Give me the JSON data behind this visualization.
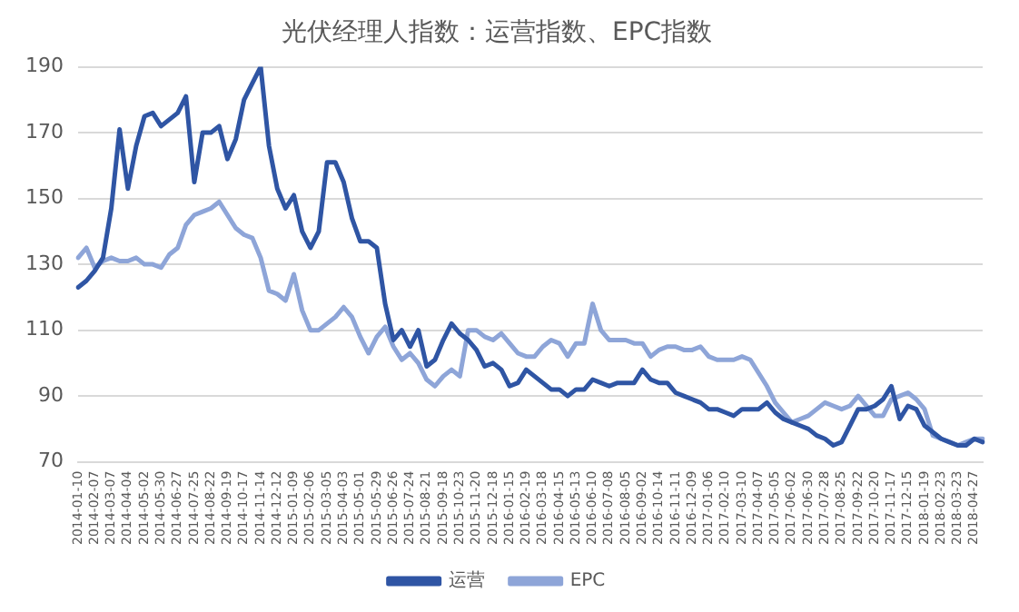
{
  "chart_data": {
    "type": "line",
    "title": "光伏经理人指数：运营指数、EPC指数",
    "categories": [
      "2014-01-10",
      null,
      "2014-02-07",
      null,
      "2014-03-07",
      null,
      "2014-04-04",
      null,
      "2014-05-02",
      null,
      "2014-05-30",
      null,
      "2014-06-27",
      null,
      "2014-07-25",
      null,
      "2014-08-22",
      null,
      "2014-09-19",
      null,
      "2014-10-17",
      null,
      "2014-11-14",
      null,
      "2014-12-12",
      null,
      "2015-01-09",
      null,
      "2015-02-06",
      null,
      "2015-03-05",
      null,
      "2015-04-03",
      null,
      "2015-05-01",
      null,
      "2015-05-29",
      null,
      "2015-06-26",
      null,
      "2015-07-24",
      null,
      "2015-08-21",
      null,
      "2015-09-18",
      null,
      "2015-10-23",
      null,
      "2015-11-20",
      null,
      "2015-12-18",
      null,
      "2016-01-15",
      null,
      "2016-02-19",
      null,
      "2016-03-18",
      null,
      "2016-04-15",
      null,
      "2016-05-13",
      null,
      "2016-06-10",
      null,
      "2016-07-08",
      null,
      "2016-08-05",
      null,
      "2016-09-02",
      null,
      "2016-10-14",
      null,
      "2016-11-11",
      null,
      "2016-12-09",
      null,
      "2017-01-06",
      null,
      "2017-02-10",
      null,
      "2017-03-10",
      null,
      "2017-04-07",
      null,
      "2017-05-05",
      null,
      "2017-06-02",
      null,
      "2017-06-30",
      null,
      "2017-07-28",
      null,
      "2017-08-25",
      null,
      "2017-09-22",
      null,
      "2017-10-20",
      null,
      "2017-11-17",
      null,
      "2017-12-15",
      null,
      "2018-01-19",
      null,
      "2018-02-23",
      null,
      "2018-03-23",
      null,
      "2018-04-27",
      null
    ],
    "series": [
      {
        "name": "运营",
        "color": "#2f55a4",
        "values": [
          123,
          125,
          128,
          132,
          147,
          171,
          153,
          166,
          175,
          176,
          172,
          174,
          176,
          181,
          155,
          170,
          170,
          172,
          162,
          168,
          180,
          185,
          190,
          166,
          153,
          147,
          151,
          140,
          135,
          140,
          161,
          161,
          155,
          144,
          137,
          137,
          135,
          118,
          107,
          110,
          105,
          110,
          99,
          101,
          107,
          112,
          109,
          107,
          104,
          99,
          100,
          98,
          93,
          94,
          98,
          96,
          94,
          92,
          92,
          90,
          92,
          92,
          95,
          94,
          93,
          94,
          94,
          94,
          98,
          95,
          94,
          94,
          91,
          90,
          89,
          88,
          86,
          86,
          85,
          84,
          86,
          86,
          86,
          88,
          85,
          83,
          82,
          81,
          80,
          78,
          77,
          75,
          76,
          81,
          86,
          86,
          87,
          89,
          93,
          83,
          87,
          86,
          81,
          79,
          77,
          76,
          75,
          75,
          77,
          76
        ]
      },
      {
        "name": "EPC",
        "color": "#8ea5d8",
        "values": [
          132,
          135,
          129,
          131,
          132,
          131,
          131,
          132,
          130,
          130,
          129,
          133,
          135,
          142,
          145,
          146,
          147,
          149,
          145,
          141,
          139,
          138,
          132,
          122,
          121,
          119,
          127,
          116,
          110,
          110,
          112,
          114,
          117,
          114,
          108,
          103,
          108,
          111,
          105,
          101,
          103,
          100,
          95,
          93,
          96,
          98,
          96,
          110,
          110,
          108,
          107,
          109,
          106,
          103,
          102,
          102,
          105,
          107,
          106,
          102,
          106,
          106,
          118,
          110,
          107,
          107,
          107,
          106,
          106,
          102,
          104,
          105,
          105,
          104,
          104,
          105,
          102,
          101,
          101,
          101,
          102,
          101,
          97,
          93,
          88,
          85,
          82,
          83,
          84,
          86,
          88,
          87,
          86,
          87,
          90,
          87,
          84,
          84,
          89,
          90,
          91,
          89,
          86,
          78,
          77,
          76,
          75,
          76,
          77,
          77
        ]
      }
    ],
    "ylim": [
      70,
      190
    ],
    "yticks": [
      70,
      90,
      110,
      130,
      150,
      170,
      190
    ],
    "grid": "y",
    "legend": "bottom",
    "marker": "none",
    "line_style": "solid"
  }
}
